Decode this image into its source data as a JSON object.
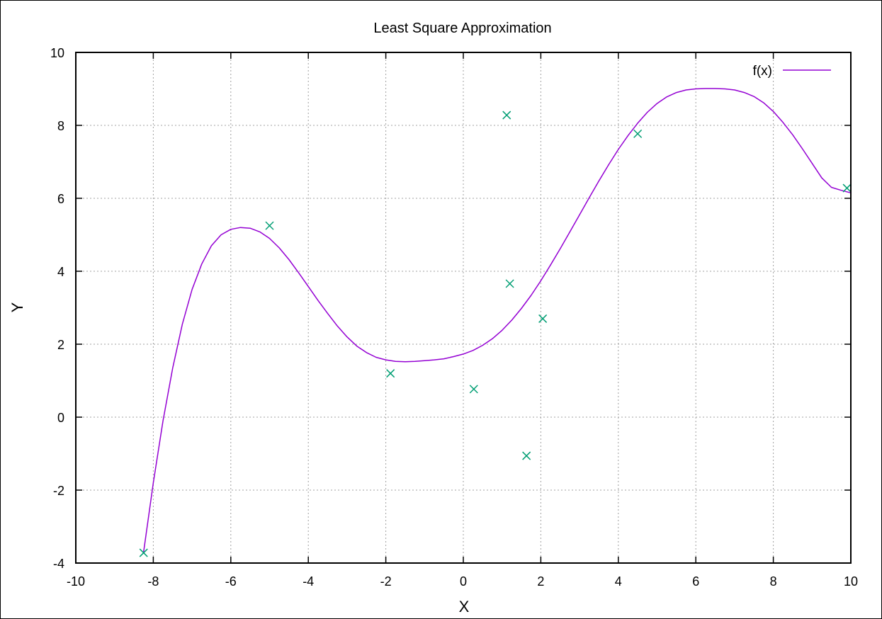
{
  "chart_data": {
    "type": "scatter",
    "title": "Least Square Approximation",
    "xlabel": "X",
    "ylabel": "Y",
    "xlim": [
      -10,
      10
    ],
    "ylim": [
      -4,
      10
    ],
    "xticks": [
      -10,
      -8,
      -6,
      -4,
      -2,
      0,
      2,
      4,
      6,
      8,
      10
    ],
    "yticks": [
      -4,
      -2,
      0,
      2,
      4,
      6,
      8,
      10
    ],
    "grid": true,
    "legend_position": "top-right",
    "series": [
      {
        "name": "f(x)",
        "kind": "line",
        "color": "#9400d3",
        "x": [
          -8.25,
          -8.0,
          -7.75,
          -7.5,
          -7.25,
          -7.0,
          -6.75,
          -6.5,
          -6.25,
          -6.0,
          -5.75,
          -5.5,
          -5.25,
          -5.0,
          -4.75,
          -4.5,
          -4.25,
          -4.0,
          -3.75,
          -3.5,
          -3.25,
          -3.0,
          -2.75,
          -2.5,
          -2.25,
          -2.0,
          -1.75,
          -1.5,
          -1.25,
          -1.0,
          -0.75,
          -0.5,
          -0.25,
          0.0,
          0.25,
          0.5,
          0.75,
          1.0,
          1.25,
          1.5,
          1.75,
          2.0,
          2.25,
          2.5,
          2.75,
          3.0,
          3.25,
          3.5,
          3.75,
          4.0,
          4.25,
          4.5,
          4.75,
          5.0,
          5.25,
          5.5,
          5.75,
          6.0,
          6.25,
          6.5,
          6.75,
          7.0,
          7.25,
          7.5,
          7.75,
          8.0,
          8.25,
          8.5,
          8.75,
          9.0,
          9.25,
          9.5,
          9.75,
          10.0
        ],
        "y": [
          -3.7,
          -1.8,
          -0.1,
          1.35,
          2.55,
          3.5,
          4.2,
          4.7,
          5.0,
          5.15,
          5.2,
          5.18,
          5.08,
          4.9,
          4.64,
          4.32,
          3.96,
          3.58,
          3.2,
          2.84,
          2.5,
          2.2,
          1.95,
          1.77,
          1.64,
          1.57,
          1.53,
          1.52,
          1.53,
          1.55,
          1.57,
          1.6,
          1.66,
          1.73,
          1.83,
          1.97,
          2.15,
          2.38,
          2.66,
          2.98,
          3.34,
          3.74,
          4.17,
          4.62,
          5.08,
          5.55,
          6.02,
          6.48,
          6.92,
          7.34,
          7.72,
          8.06,
          8.36,
          8.6,
          8.78,
          8.9,
          8.97,
          9.0,
          9.01,
          9.01,
          9.0,
          8.97,
          8.9,
          8.79,
          8.62,
          8.38,
          8.08,
          7.74,
          7.36,
          6.96,
          6.56,
          6.3,
          6.22,
          6.15
        ]
      },
      {
        "name": "",
        "kind": "points",
        "marker": "x",
        "color": "#009e73",
        "x": [
          -8.25,
          -5.0,
          -1.88,
          0.27,
          1.12,
          1.2,
          1.63,
          2.05,
          4.5,
          9.9
        ],
        "y": [
          -3.72,
          5.25,
          1.2,
          0.77,
          8.28,
          3.66,
          -1.06,
          2.7,
          7.77,
          6.28
        ]
      }
    ]
  }
}
